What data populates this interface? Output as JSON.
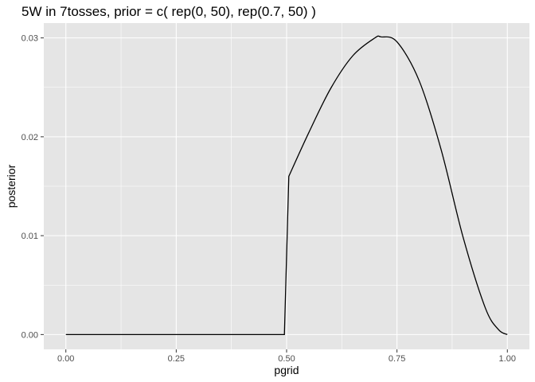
{
  "chart_data": {
    "type": "line",
    "title": "5W in 7tosses, prior = c( rep(0, 50), rep(0.7, 50) )",
    "xlabel": "pgrid",
    "ylabel": "posterior",
    "xlim": [
      -0.05,
      1.05
    ],
    "ylim": [
      -0.0015,
      0.0315
    ],
    "x_ticks": [
      0,
      0.25,
      0.5,
      0.75,
      1
    ],
    "x_tick_labels": [
      "0.00",
      "0.25",
      "0.50",
      "0.75",
      "1.00"
    ],
    "y_ticks": [
      0,
      0.01,
      0.02,
      0.03
    ],
    "y_tick_labels": [
      "0.00",
      "0.01",
      "0.02",
      "0.03"
    ],
    "grid": true,
    "legend": "none",
    "colors": {
      "panel": "#e5e5e5",
      "grid": "#ffffff",
      "line": "#000000"
    },
    "series": [
      {
        "x": [
          0,
          0.495,
          0.505,
          0.55,
          0.6,
          0.65,
          0.7,
          0.714,
          0.75,
          0.8,
          0.85,
          0.9,
          0.95,
          0.98,
          1
        ],
        "values": [
          0,
          0,
          0.016,
          0.0204,
          0.0249,
          0.0282,
          0.03,
          0.0301,
          0.0296,
          0.0257,
          0.0187,
          0.0098,
          0.0027,
          0.0005,
          0
        ]
      }
    ]
  }
}
